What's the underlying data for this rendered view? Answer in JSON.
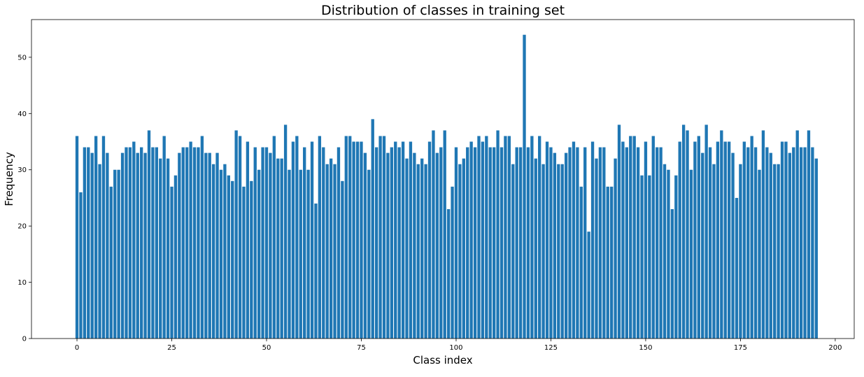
{
  "chart_data": {
    "type": "bar",
    "title": "Distribution of classes in training set",
    "xlabel": "Class index",
    "ylabel": "Frequency",
    "xlim": [
      -12,
      205
    ],
    "ylim": [
      0,
      56.7
    ],
    "xticks": [
      0,
      25,
      50,
      75,
      100,
      125,
      150,
      175,
      200
    ],
    "yticks": [
      0,
      10,
      20,
      30,
      40,
      50
    ],
    "bar_color": "#1f77b4",
    "grid": false,
    "x": [
      0,
      1,
      2,
      3,
      4,
      5,
      6,
      7,
      8,
      9,
      10,
      11,
      12,
      13,
      14,
      15,
      16,
      17,
      18,
      19,
      20,
      21,
      22,
      23,
      24,
      25,
      26,
      27,
      28,
      29,
      30,
      31,
      32,
      33,
      34,
      35,
      36,
      37,
      38,
      39,
      40,
      41,
      42,
      43,
      44,
      45,
      46,
      47,
      48,
      49,
      50,
      51,
      52,
      53,
      54,
      55,
      56,
      57,
      58,
      59,
      60,
      61,
      62,
      63,
      64,
      65,
      66,
      67,
      68,
      69,
      70,
      71,
      72,
      73,
      74,
      75,
      76,
      77,
      78,
      79,
      80,
      81,
      82,
      83,
      84,
      85,
      86,
      87,
      88,
      89,
      90,
      91,
      92,
      93,
      94,
      95,
      96,
      97,
      98,
      99,
      100,
      101,
      102,
      103,
      104,
      105,
      106,
      107,
      108,
      109,
      110,
      111,
      112,
      113,
      114,
      115,
      116,
      117,
      118,
      119,
      120,
      121,
      122,
      123,
      124,
      125,
      126,
      127,
      128,
      129,
      130,
      131,
      132,
      133,
      134,
      135,
      136,
      137,
      138,
      139,
      140,
      141,
      142,
      143,
      144,
      145,
      146,
      147,
      148,
      149,
      150,
      151,
      152,
      153,
      154,
      155,
      156,
      157,
      158,
      159,
      160,
      161,
      162,
      163,
      164,
      165,
      166,
      167,
      168,
      169,
      170,
      171,
      172,
      173,
      174,
      175,
      176,
      177,
      178,
      179,
      180,
      181,
      182,
      183,
      184,
      185,
      186,
      187,
      188,
      189,
      190,
      191,
      192,
      193,
      194,
      195
    ],
    "values": [
      36,
      26,
      34,
      34,
      33,
      36,
      31,
      36,
      33,
      27,
      30,
      30,
      33,
      34,
      34,
      35,
      33,
      34,
      33,
      37,
      34,
      34,
      32,
      36,
      32,
      27,
      29,
      33,
      34,
      34,
      35,
      34,
      34,
      36,
      33,
      33,
      31,
      33,
      30,
      31,
      29,
      28,
      37,
      36,
      27,
      35,
      28,
      34,
      30,
      34,
      34,
      33,
      36,
      32,
      32,
      38,
      30,
      35,
      36,
      30,
      34,
      30,
      35,
      24,
      36,
      34,
      31,
      32,
      31,
      34,
      28,
      36,
      36,
      35,
      35,
      35,
      33,
      30,
      39,
      34,
      36,
      36,
      33,
      34,
      35,
      34,
      35,
      32,
      35,
      33,
      31,
      32,
      31,
      35,
      37,
      33,
      34,
      37,
      23,
      27,
      34,
      31,
      32,
      34,
      35,
      34,
      36,
      35,
      36,
      34,
      34,
      37,
      34,
      36,
      36,
      31,
      34,
      34,
      54,
      34,
      36,
      32,
      36,
      31,
      35,
      34,
      33,
      31,
      31,
      33,
      34,
      35,
      34,
      27,
      34,
      19,
      35,
      32,
      34,
      34,
      27,
      27,
      32,
      38,
      35,
      34,
      36,
      36,
      34,
      29,
      35,
      29,
      36,
      34,
      34,
      31,
      30,
      23,
      29,
      35,
      38,
      37,
      30,
      35,
      36,
      33,
      38,
      34,
      31,
      35,
      37,
      35,
      35,
      33,
      25,
      31,
      35,
      34,
      36,
      34,
      30,
      37,
      34,
      33,
      31,
      31,
      35,
      35,
      33,
      34,
      37,
      34,
      34,
      37,
      34,
      32
    ]
  }
}
